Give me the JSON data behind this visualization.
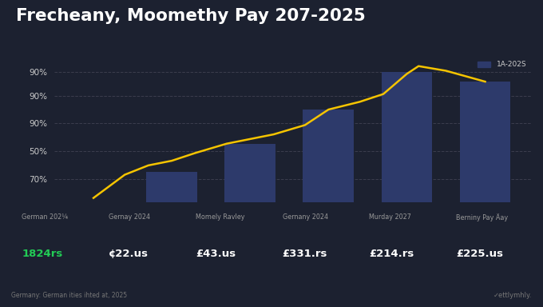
{
  "title": "Frecheany, Moomethy Pay 207-2025",
  "bg_color": "#1c2130",
  "bar_color": "#2d3a6b",
  "line_color": "#f5c400",
  "legend_label": "1A-202S",
  "categories": [
    "German 202¼",
    "Gernay 2024",
    "Momely Ravley",
    "Gernany 2024",
    "Murday 2027",
    "Berniny Pay Äay"
  ],
  "bar_positions": [
    1,
    2,
    3,
    4,
    5
  ],
  "bar_vals": [
    20,
    38,
    60,
    84,
    78
  ],
  "line_x": [
    0.0,
    0.4,
    0.7,
    1.0,
    1.3,
    1.7,
    2.0,
    2.3,
    2.7,
    3.0,
    3.4,
    3.7,
    4.0,
    4.15,
    4.5,
    5.0
  ],
  "line_y": [
    3,
    18,
    24,
    27,
    32,
    38,
    41,
    44,
    50,
    60,
    65,
    70,
    83,
    88,
    85,
    78
  ],
  "ytick_positions": [
    15,
    33,
    51,
    69,
    84
  ],
  "ytick_labels": [
    "70%",
    "50%",
    "90%",
    "90%",
    "90%"
  ],
  "footer_labels": [
    "German 202¼",
    "Gernay 2024",
    "Momely Ravley",
    "Gernany 2024",
    "Murday 2027",
    "Berniny Pay Äay"
  ],
  "footer_values": [
    "1824rs",
    "¢22.us",
    "£43.us",
    "£331.rs",
    "£214.rs",
    "£225.us"
  ],
  "footer_value_colors": [
    "#22cc55",
    "#ffffff",
    "#ffffff",
    "#ffffff",
    "#ffffff",
    "#ffffff"
  ],
  "source_text": "Germany: German ities ihted at, 2025",
  "watermark": "✓ettlymhly."
}
